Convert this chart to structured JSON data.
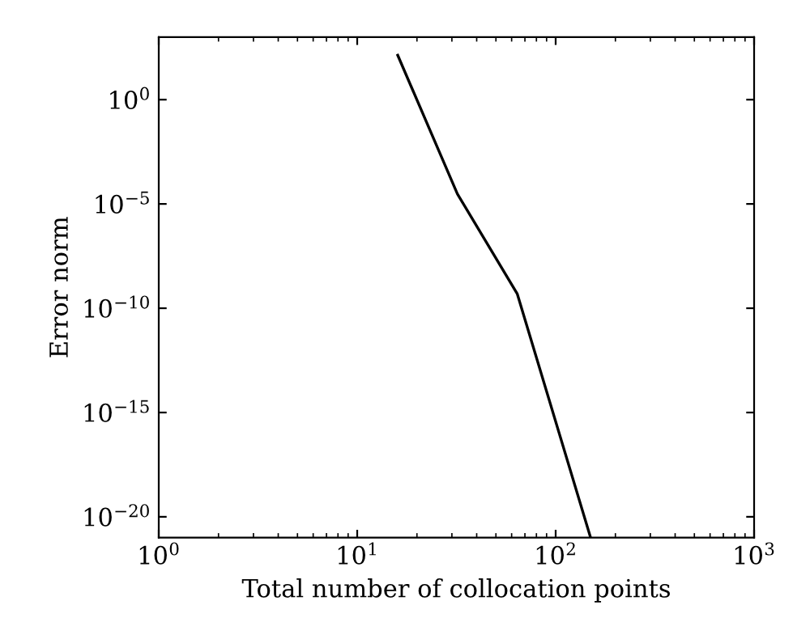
{
  "chart_data": {
    "type": "line",
    "xlabel": "Total number of collocation points",
    "ylabel": "Error norm",
    "log": "xy",
    "xlim": [
      1,
      1000
    ],
    "ylim": [
      1e-21,
      1000
    ],
    "xticks": [
      {
        "value": 1,
        "label": "10$^{0}$"
      },
      {
        "value": 10,
        "label": "10$^{1}$"
      },
      {
        "value": 100,
        "label": "10$^{2}$"
      },
      {
        "value": 1000,
        "label": "10$^{3}$"
      }
    ],
    "yticks": [
      {
        "value": 1e-20,
        "label": "10$^{−20}$"
      },
      {
        "value": 1e-15,
        "label": "10$^{−15}$"
      },
      {
        "value": 1e-10,
        "label": "10$^{−10}$"
      },
      {
        "value": 1e-05,
        "label": "10$^{−5}$"
      },
      {
        "value": 1,
        "label": "10$^{0}$"
      }
    ],
    "grid": false,
    "marker": "none",
    "line_style": "solid",
    "series": [
      {
        "color": "#000000",
        "x": [
          16,
          32,
          64,
          150
        ],
        "values": [
          135,
          3e-05,
          5e-10,
          1e-21
        ]
      }
    ]
  }
}
